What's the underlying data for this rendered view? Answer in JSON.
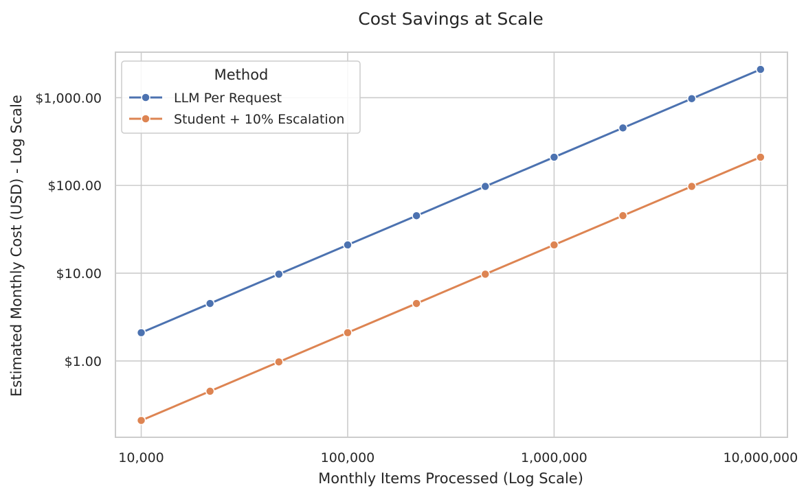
{
  "chart_data": {
    "type": "line",
    "title": "Cost Savings at Scale",
    "xlabel": "Monthly Items Processed (Log Scale)",
    "ylabel": "Estimated Monthly Cost (USD) - Log Scale",
    "xscale": "log",
    "yscale": "log",
    "xlim": [
      7500,
      13500000
    ],
    "ylim": [
      0.135,
      3300
    ],
    "x_ticks": [
      10000,
      100000,
      1000000,
      10000000
    ],
    "x_tick_labels": [
      "10,000",
      "100,000",
      "1,000,000",
      "10,000,000"
    ],
    "y_ticks": [
      1,
      10,
      100,
      1000
    ],
    "y_tick_labels": [
      "$1.00",
      "$10.00",
      "$100.00",
      "$1,000.00"
    ],
    "grid": true,
    "legend": {
      "title": "Method",
      "position": "top-left"
    },
    "x": [
      10000,
      21544,
      46416,
      100000,
      215443,
      464159,
      1000000,
      2154435,
      4641589,
      10000000
    ],
    "series": [
      {
        "name": "LLM Per Request",
        "color": "#4c72b0",
        "values": [
          2.1,
          4.52,
          9.75,
          21.0,
          45.2,
          97.5,
          210.0,
          452.4,
          974.7,
          2100.0
        ]
      },
      {
        "name": "Student + 10% Escalation",
        "color": "#dd8452",
        "values": [
          0.21,
          0.452,
          0.975,
          2.1,
          4.52,
          9.75,
          21.0,
          45.24,
          97.47,
          210.0
        ]
      }
    ]
  }
}
